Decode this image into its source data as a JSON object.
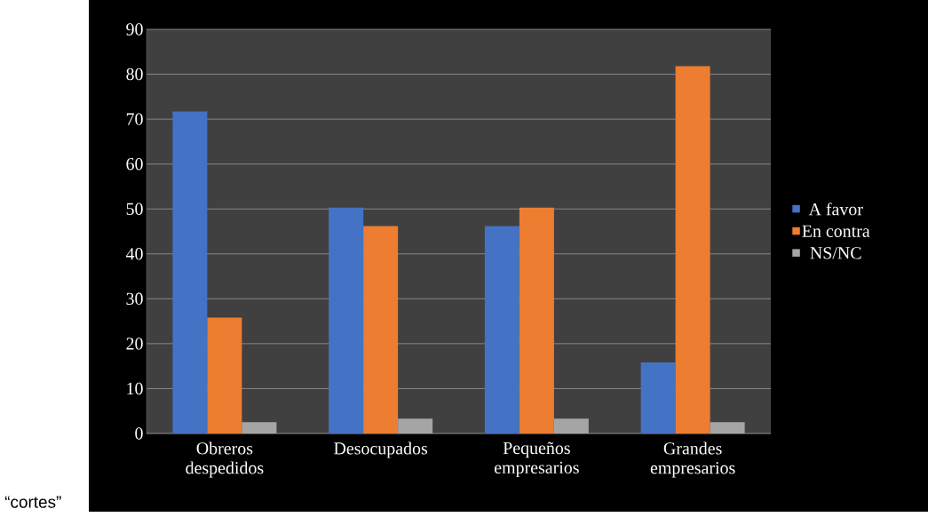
{
  "chart_data": {
    "type": "bar",
    "categories": [
      "Obreros despedidos",
      "Desocupados",
      "Pequeños empresarios",
      "Grandes empresarios"
    ],
    "series": [
      {
        "name": "A favor",
        "color": "#4472c4",
        "values": [
          71.7,
          50.3,
          46.2,
          15.8
        ]
      },
      {
        "name": "En contra",
        "color": "#ed7d31",
        "values": [
          25.8,
          46.2,
          50.3,
          81.8
        ]
      },
      {
        "name": "NS/NC",
        "color": "#a5a5a5",
        "values": [
          2.5,
          3.3,
          3.3,
          2.5
        ]
      }
    ],
    "ylim": [
      0,
      90
    ],
    "yticks": [
      0,
      10,
      20,
      30,
      40,
      50,
      60,
      70,
      80,
      90
    ],
    "grid": "y",
    "legend": "right",
    "annotations": [
      "“cortes”"
    ]
  }
}
